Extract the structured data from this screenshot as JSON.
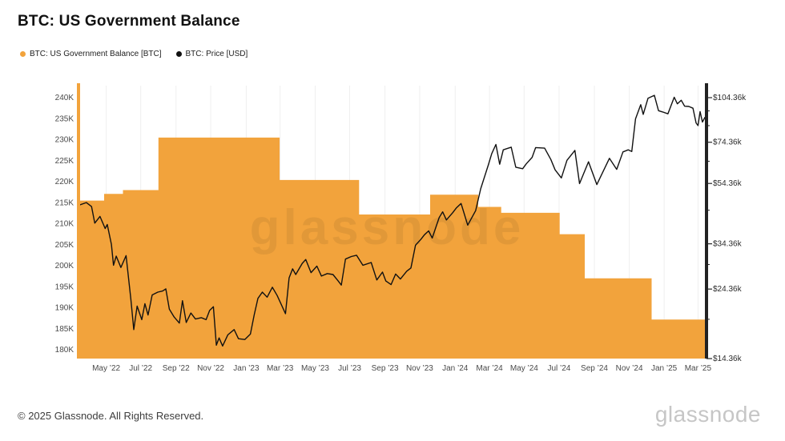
{
  "page": {
    "title": "BTC: US Government Balance",
    "footer": "© 2025 Glassnode. All Rights Reserved.",
    "watermark": "glassnode",
    "brand_wordmark": "glassnode"
  },
  "legend": [
    {
      "label": "BTC: US Government Balance [BTC]",
      "color": "#F2A33C"
    },
    {
      "label": "BTC: Price [USD]",
      "color": "#111111"
    }
  ],
  "chart_data": {
    "type": "area",
    "title": "BTC: US Government Balance",
    "colors": {
      "balance_area": "#F2A33C",
      "price_line": "#111111",
      "grid": "#efefef",
      "left_axis_line": "#F2A33C",
      "right_axis_line": "#222222",
      "tick_text": "#4a4a4a"
    },
    "x_axis": {
      "ticks": [
        {
          "label": "May ’22",
          "t": 2022.33
        },
        {
          "label": "Jul ’22",
          "t": 2022.495
        },
        {
          "label": "Sep ’22",
          "t": 2022.664
        },
        {
          "label": "Nov ’22",
          "t": 2022.83
        },
        {
          "label": "Jan ’23",
          "t": 2023.0
        },
        {
          "label": "Mar ’23",
          "t": 2023.162
        },
        {
          "label": "May ’23",
          "t": 2023.33
        },
        {
          "label": "Jul ’23",
          "t": 2023.495
        },
        {
          "label": "Sep ’23",
          "t": 2023.664
        },
        {
          "label": "Nov ’23",
          "t": 2023.83
        },
        {
          "label": "Jan ’24",
          "t": 2024.0
        },
        {
          "label": "Mar ’24",
          "t": 2024.164
        },
        {
          "label": "May ’24",
          "t": 2024.33
        },
        {
          "label": "Jul ’24",
          "t": 2024.497
        },
        {
          "label": "Sep ’24",
          "t": 2024.666
        },
        {
          "label": "Nov ’24",
          "t": 2024.833
        },
        {
          "label": "Jan ’25",
          "t": 2025.0
        },
        {
          "label": "Mar ’25",
          "t": 2025.162
        }
      ]
    },
    "left_axis": {
      "title": "US Government Balance [BTC]",
      "min_k": 180,
      "max_k": 240,
      "ticks": [
        {
          "label": "240K",
          "value": 240
        },
        {
          "label": "235K",
          "value": 235
        },
        {
          "label": "230K",
          "value": 230
        },
        {
          "label": "225K",
          "value": 225
        },
        {
          "label": "220K",
          "value": 220
        },
        {
          "label": "215K",
          "value": 215
        },
        {
          "label": "210K",
          "value": 210
        },
        {
          "label": "205K",
          "value": 205
        },
        {
          "label": "200K",
          "value": 200
        },
        {
          "label": "195K",
          "value": 195
        },
        {
          "label": "190K",
          "value": 190
        },
        {
          "label": "185K",
          "value": 185
        },
        {
          "label": "180K",
          "value": 180
        }
      ]
    },
    "right_axis": {
      "title": "BTC: Price [USD]",
      "scale": "log",
      "ticks": [
        {
          "label": "$104.36k",
          "value": 104.36
        },
        {
          "label": "$74.36k",
          "value": 74.36
        },
        {
          "label": "$54.36k",
          "value": 54.36
        },
        {
          "label": "$34.36k",
          "value": 34.36
        },
        {
          "label": "$24.36k",
          "value": 24.36
        },
        {
          "label": "$14.36k",
          "value": 14.36
        }
      ],
      "minor_ticks": [
        94.36,
        84.36,
        64.36,
        44.36,
        29.36,
        19.36
      ]
    },
    "series": [
      {
        "name": "BTC: US Government Balance [BTC]",
        "type": "step-area",
        "axis": "left",
        "unit": "thousand BTC",
        "steps_t_btc_k": [
          [
            2022.205,
            215.5
          ],
          [
            2022.32,
            217.1
          ],
          [
            2022.41,
            218.0
          ],
          [
            2022.58,
            230.5
          ],
          [
            2023.16,
            220.4
          ],
          [
            2023.54,
            212.2
          ],
          [
            2023.88,
            216.9
          ],
          [
            2024.11,
            214.0
          ],
          [
            2024.22,
            212.6
          ],
          [
            2024.5,
            207.5
          ],
          [
            2024.62,
            197.0
          ],
          [
            2024.94,
            187.2
          ]
        ]
      },
      {
        "name": "BTC: Price [USD]",
        "type": "line",
        "axis": "right",
        "unit": "thousand USD",
        "points_t_usd_k": [
          [
            2022.205,
            46.2
          ],
          [
            2022.235,
            47.0
          ],
          [
            2022.26,
            45.6
          ],
          [
            2022.275,
            40.2
          ],
          [
            2022.3,
            42.3
          ],
          [
            2022.325,
            38.6
          ],
          [
            2022.335,
            39.8
          ],
          [
            2022.355,
            34.2
          ],
          [
            2022.365,
            29.2
          ],
          [
            2022.378,
            31.3
          ],
          [
            2022.4,
            28.7
          ],
          [
            2022.425,
            31.4
          ],
          [
            2022.448,
            22.5
          ],
          [
            2022.462,
            17.9
          ],
          [
            2022.478,
            21.4
          ],
          [
            2022.5,
            19.3
          ],
          [
            2022.515,
            21.8
          ],
          [
            2022.53,
            20.0
          ],
          [
            2022.55,
            23.3
          ],
          [
            2022.577,
            23.8
          ],
          [
            2022.6,
            24.0
          ],
          [
            2022.615,
            24.4
          ],
          [
            2022.632,
            20.9
          ],
          [
            2022.655,
            19.7
          ],
          [
            2022.68,
            18.8
          ],
          [
            2022.695,
            22.3
          ],
          [
            2022.713,
            18.9
          ],
          [
            2022.735,
            20.3
          ],
          [
            2022.757,
            19.4
          ],
          [
            2022.785,
            19.6
          ],
          [
            2022.808,
            19.3
          ],
          [
            2022.825,
            20.7
          ],
          [
            2022.843,
            21.3
          ],
          [
            2022.857,
            15.9
          ],
          [
            2022.87,
            16.8
          ],
          [
            2022.887,
            15.8
          ],
          [
            2022.912,
            17.2
          ],
          [
            2022.942,
            17.9
          ],
          [
            2022.963,
            16.7
          ],
          [
            2022.993,
            16.6
          ],
          [
            2023.02,
            17.3
          ],
          [
            2023.038,
            20.0
          ],
          [
            2023.056,
            22.7
          ],
          [
            2023.077,
            23.8
          ],
          [
            2023.1,
            22.9
          ],
          [
            2023.125,
            24.7
          ],
          [
            2023.148,
            23.2
          ],
          [
            2023.188,
            20.2
          ],
          [
            2023.205,
            26.5
          ],
          [
            2023.222,
            28.4
          ],
          [
            2023.237,
            27.2
          ],
          [
            2023.268,
            29.6
          ],
          [
            2023.285,
            30.5
          ],
          [
            2023.31,
            27.6
          ],
          [
            2023.338,
            29.0
          ],
          [
            2023.36,
            26.9
          ],
          [
            2023.388,
            27.4
          ],
          [
            2023.415,
            27.2
          ],
          [
            2023.44,
            25.9
          ],
          [
            2023.455,
            25.1
          ],
          [
            2023.475,
            30.6
          ],
          [
            2023.503,
            31.2
          ],
          [
            2023.528,
            31.5
          ],
          [
            2023.558,
            29.2
          ],
          [
            2023.598,
            29.8
          ],
          [
            2023.625,
            26.1
          ],
          [
            2023.652,
            27.7
          ],
          [
            2023.668,
            25.9
          ],
          [
            2023.693,
            25.2
          ],
          [
            2023.715,
            27.3
          ],
          [
            2023.738,
            26.3
          ],
          [
            2023.768,
            27.9
          ],
          [
            2023.788,
            28.6
          ],
          [
            2023.81,
            34.0
          ],
          [
            2023.835,
            35.5
          ],
          [
            2023.853,
            36.8
          ],
          [
            2023.873,
            37.9
          ],
          [
            2023.89,
            35.9
          ],
          [
            2023.923,
            41.9
          ],
          [
            2023.94,
            43.8
          ],
          [
            2023.958,
            41.2
          ],
          [
            2023.988,
            43.5
          ],
          [
            2024.005,
            45.1
          ],
          [
            2024.028,
            46.7
          ],
          [
            2024.06,
            39.6
          ],
          [
            2024.098,
            44.2
          ],
          [
            2024.122,
            52.2
          ],
          [
            2024.158,
            62.4
          ],
          [
            2024.175,
            68.2
          ],
          [
            2024.195,
            73.1
          ],
          [
            2024.213,
            62.9
          ],
          [
            2024.23,
            70.2
          ],
          [
            2024.268,
            71.6
          ],
          [
            2024.29,
            61.5
          ],
          [
            2024.323,
            60.8
          ],
          [
            2024.34,
            63.1
          ],
          [
            2024.368,
            66.3
          ],
          [
            2024.385,
            71.4
          ],
          [
            2024.428,
            71.1
          ],
          [
            2024.458,
            65.2
          ],
          [
            2024.478,
            60.3
          ],
          [
            2024.508,
            56.7
          ],
          [
            2024.535,
            64.8
          ],
          [
            2024.573,
            69.9
          ],
          [
            2024.595,
            54.3
          ],
          [
            2024.638,
            64.1
          ],
          [
            2024.678,
            53.9
          ],
          [
            2024.738,
            65.8
          ],
          [
            2024.773,
            60.5
          ],
          [
            2024.803,
            69.1
          ],
          [
            2024.828,
            70.2
          ],
          [
            2024.845,
            69.3
          ],
          [
            2024.863,
            88.8
          ],
          [
            2024.888,
            98.9
          ],
          [
            2024.9,
            91.9
          ],
          [
            2024.923,
            103.9
          ],
          [
            2024.953,
            106.2
          ],
          [
            2024.973,
            94.5
          ],
          [
            2024.993,
            93.6
          ],
          [
            2025.018,
            92.3
          ],
          [
            2025.048,
            104.7
          ],
          [
            2025.063,
            99.6
          ],
          [
            2025.082,
            102.3
          ],
          [
            2025.098,
            97.8
          ],
          [
            2025.118,
            97.6
          ],
          [
            2025.138,
            96.3
          ],
          [
            2025.153,
            86.1
          ],
          [
            2025.162,
            84.4
          ],
          [
            2025.172,
            93.9
          ],
          [
            2025.183,
            86.7
          ],
          [
            2025.195,
            89.8
          ]
        ]
      }
    ]
  }
}
